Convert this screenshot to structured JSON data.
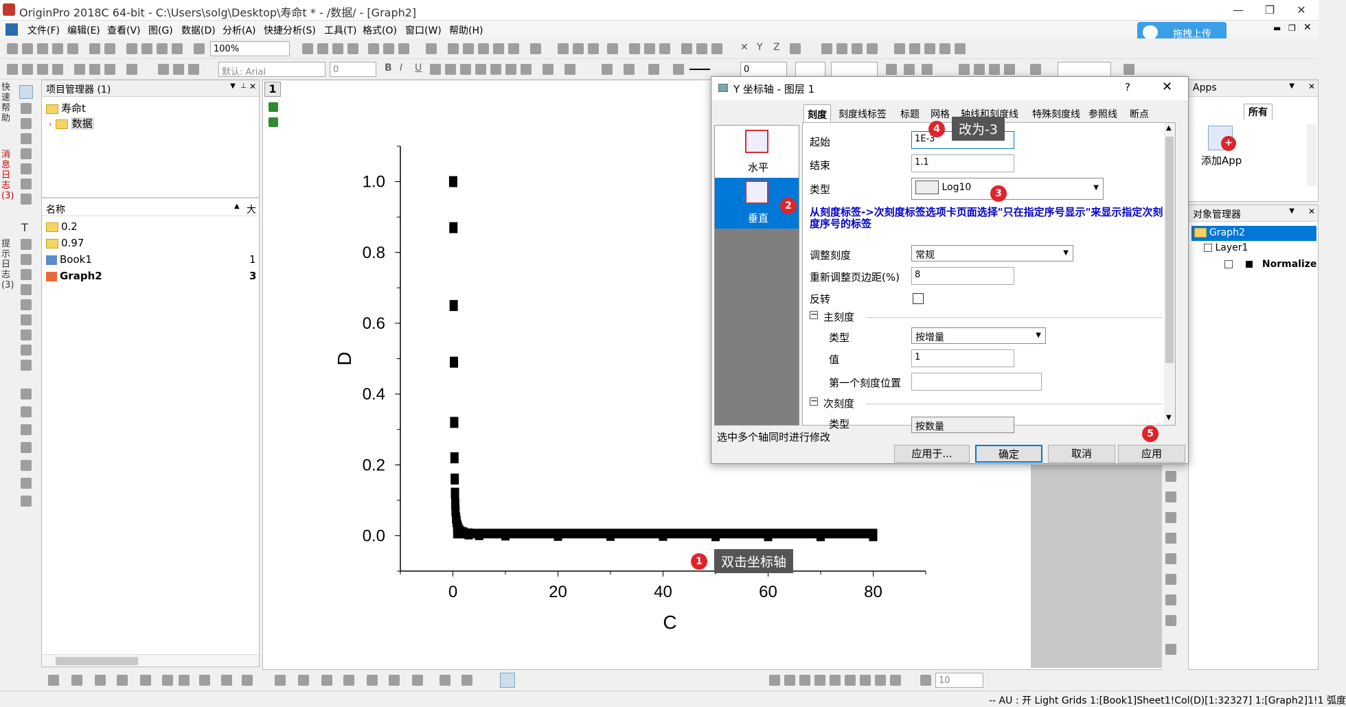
{
  "window": {
    "title": "OriginPro 2018C 64-bit - C:\\Users\\solg\\Desktop\\寿命t * - /数据/ - [Graph2]"
  },
  "menu": [
    "文件(F)",
    "编辑(E)",
    "查看(V)",
    "图(G)",
    "数据(D)",
    "分析(A)",
    "快捷分析(S)",
    "工具(T)",
    "格式(O)",
    "窗口(W)",
    "帮助(H)"
  ],
  "toolbar": {
    "zoom": "100%",
    "font": "默认: Arial",
    "font_size": "0",
    "line_width": "0",
    "upload_label": "拖拽上传",
    "bottom_size": "10"
  },
  "left_tabs": [
    "快速帮助",
    "消息日志 (3)",
    "提示日志 (3)"
  ],
  "project_manager": {
    "title": "项目管理器 (1)",
    "tree": [
      {
        "label": "寿命t"
      },
      {
        "label": "数据"
      }
    ],
    "columns": {
      "name": "名称",
      "size": "大"
    },
    "items": [
      {
        "name": "0.2",
        "type": "folder",
        "size": ""
      },
      {
        "name": "0.97",
        "type": "folder",
        "size": ""
      },
      {
        "name": "Book1",
        "type": "book",
        "size": "1"
      },
      {
        "name": "Graph2",
        "type": "graph",
        "size": "3"
      }
    ]
  },
  "graph": {
    "layer_number": "1",
    "chart_data": {
      "type": "scatter",
      "xlabel": "C",
      "ylabel": "D",
      "xlim": [
        -10,
        90
      ],
      "ylim": [
        -0.1,
        1.1
      ],
      "xticks": [
        "0",
        "20",
        "40",
        "60",
        "80"
      ],
      "yticks": [
        "0.0",
        "0.2",
        "0.4",
        "0.6",
        "0.8",
        "1.0"
      ],
      "series": [
        {
          "x": [
            0.05,
            0.1,
            0.15,
            0.2,
            0.25,
            0.3,
            0.35,
            0.4,
            0.45,
            0.5,
            0.6,
            0.7,
            0.8,
            0.9,
            1,
            1.2,
            1.5,
            2,
            3,
            5,
            10,
            20,
            30,
            40,
            50,
            60,
            70,
            80
          ],
          "y": [
            1.0,
            0.87,
            0.65,
            0.49,
            0.32,
            0.22,
            0.16,
            0.12,
            0.09,
            0.07,
            0.05,
            0.04,
            0.03,
            0.025,
            0.02,
            0.015,
            0.01,
            0.008,
            0.005,
            0.003,
            0.002,
            0.001,
            0.001,
            0.001,
            0.0,
            0.0,
            0.0,
            0.0
          ]
        }
      ]
    }
  },
  "dialog": {
    "title": "Y 坐标轴 - 图层 1",
    "help": "?",
    "tabs": [
      "刻度",
      "刻度线标签",
      "标题",
      "网格",
      "轴线和刻度线",
      "特殊刻度线",
      "参照线",
      "断点"
    ],
    "axes": [
      {
        "label": "水平"
      },
      {
        "label": "垂直"
      }
    ],
    "fields": {
      "start_label": "起始",
      "start_value": "1E-3",
      "end_label": "结束",
      "end_value": "1.1",
      "type_label": "类型",
      "type_value": "Log10",
      "note": "从刻度标签->次刻度标签选项卡页面选择\"只在指定序号显示\"来显示指定次刻度序号的标签",
      "rescale_label": "调整刻度",
      "rescale_value": "常规",
      "margin_label": "重新调整页边距(%)",
      "margin_value": "8",
      "reverse_label": "反转",
      "major_label": "主刻度",
      "major_type_label": "类型",
      "major_type_value": "按增量",
      "value_label": "值",
      "value_value": "1",
      "first_tick_label": "第一个刻度位置",
      "first_tick_value": "",
      "minor_label": "次刻度",
      "minor_type_label": "类型",
      "minor_type_value": "按数量"
    },
    "hint": "选中多个轴同时进行修改",
    "buttons": {
      "apply_to": "应用于...",
      "ok": "确定",
      "cancel": "取消",
      "apply": "应用"
    }
  },
  "annotations": [
    {
      "num": "1",
      "text": "双击坐标轴"
    },
    {
      "num": "2",
      "text": ""
    },
    {
      "num": "3",
      "text": ""
    },
    {
      "num": "4",
      "text": "改为-3"
    },
    {
      "num": "5",
      "text": ""
    }
  ],
  "apps": {
    "title": "Apps",
    "tab": "所有",
    "add_label": "添加App"
  },
  "object_manager": {
    "title": "对象管理器",
    "items": [
      "Graph2",
      "Layer1",
      "Normalize"
    ]
  },
  "statusbar": {
    "text": "-- AU : 开 Light Grids 1:[Book1]Sheet1!Col(D)[1:32327] 1:[Graph2]1!1 弧度"
  },
  "colors": {
    "accent": "#0078d7",
    "badge": "#e0232a",
    "note": "#0000cc",
    "selected_axis": "#0078d7"
  }
}
